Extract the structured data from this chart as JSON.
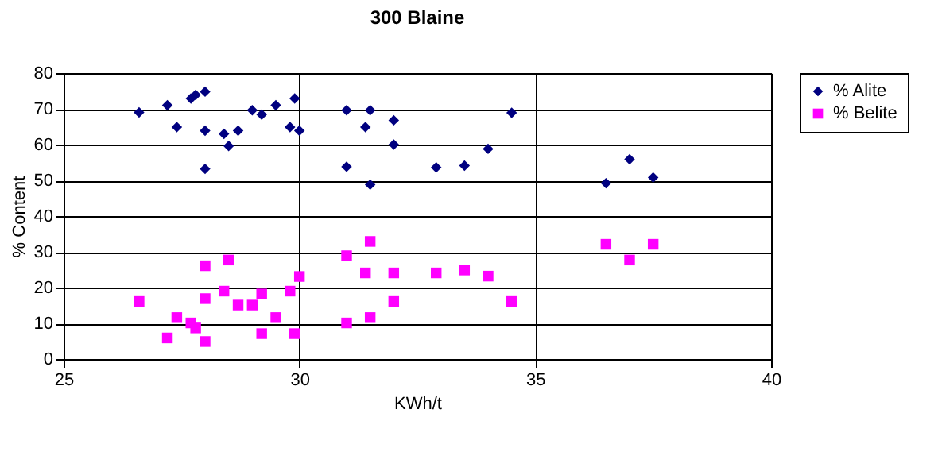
{
  "chart_data": {
    "type": "scatter",
    "title": "300 Blaine",
    "xlabel": "KWh/t",
    "ylabel": "% Content",
    "xlim": [
      25,
      40
    ],
    "xticks": [
      25,
      30,
      35,
      40
    ],
    "ylim": [
      0,
      80
    ],
    "yticks": [
      0,
      10,
      20,
      30,
      40,
      50,
      60,
      70,
      80
    ],
    "grid": true,
    "legend": "right",
    "series": [
      {
        "name": "% Alite",
        "color": "#000080",
        "marker": "diamond",
        "x": [
          26.6,
          27.2,
          27.4,
          27.7,
          27.8,
          28.0,
          28.0,
          28.0,
          28.4,
          28.5,
          28.7,
          29.0,
          29.2,
          29.5,
          29.8,
          29.9,
          30.0,
          31.0,
          31.0,
          31.4,
          31.5,
          31.5,
          32.0,
          32.0,
          32.9,
          33.5,
          34.0,
          34.5,
          36.5,
          37.0,
          37.5
        ],
        "values": [
          69.0,
          71.0,
          64.9,
          72.9,
          73.9,
          74.8,
          63.9,
          53.2,
          63.0,
          59.6,
          63.9,
          69.6,
          68.4,
          71.0,
          64.9,
          72.9,
          63.9,
          69.6,
          53.8,
          64.9,
          69.6,
          48.8,
          66.8,
          60.0,
          53.6,
          54.1,
          58.8,
          68.9,
          49.2,
          55.9,
          50.8
        ]
      },
      {
        "name": "% Belite",
        "color": "#ff00ff",
        "marker": "square",
        "x": [
          26.6,
          27.2,
          27.4,
          27.7,
          27.8,
          28.0,
          28.0,
          28.0,
          28.4,
          28.5,
          28.7,
          29.0,
          29.2,
          29.2,
          29.5,
          29.8,
          29.9,
          30.0,
          31.0,
          31.0,
          31.4,
          31.5,
          31.5,
          32.0,
          32.0,
          32.9,
          33.5,
          34.0,
          34.5,
          36.5,
          37.0,
          37.5
        ],
        "values": [
          16.1,
          5.9,
          11.6,
          10.1,
          8.7,
          26.1,
          16.9,
          4.9,
          19.0,
          27.7,
          15.1,
          15.1,
          18.2,
          7.1,
          11.6,
          19.0,
          7.1,
          23.1,
          28.9,
          10.1,
          24.1,
          32.9,
          11.6,
          24.1,
          16.1,
          24.1,
          24.9,
          23.2,
          16.1,
          32.1,
          27.7,
          32.1
        ]
      }
    ]
  }
}
